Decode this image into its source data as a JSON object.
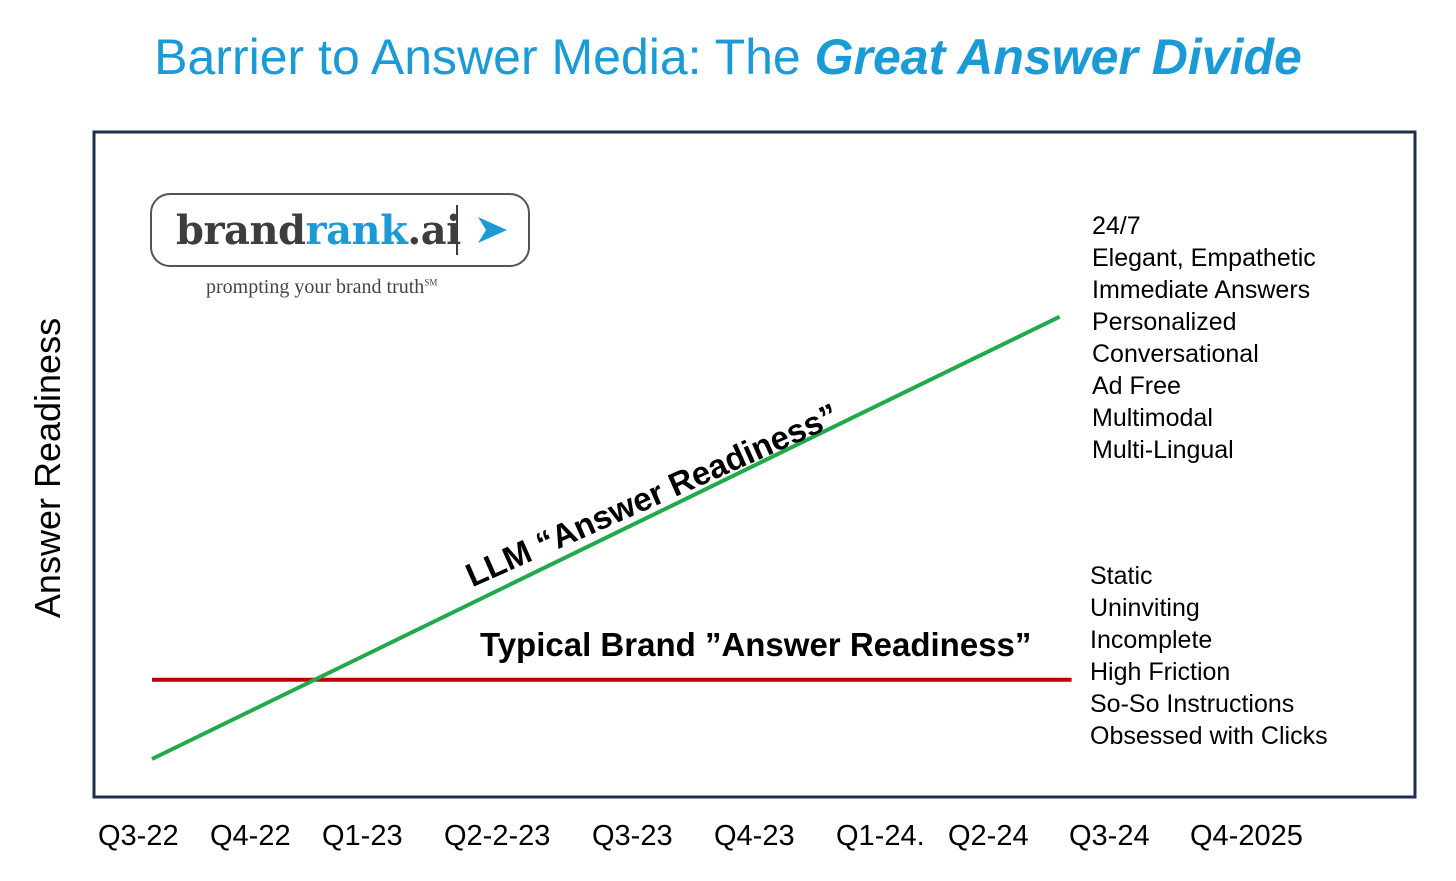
{
  "chart_data": {
    "type": "line",
    "title": "Barrier to Answer Media: The ",
    "title_emphasis": "Great Answer Divide",
    "ylabel": "Answer Readiness",
    "xlabel": "",
    "categories": [
      "Q3-22",
      "Q4-22",
      "Q1-23",
      "Q2-2-23",
      "Q3-23",
      "Q4-23",
      "Q1-24.",
      "Q2-24",
      "Q3-24",
      "Q4-2025"
    ],
    "series": [
      {
        "name": "LLM “Answer Readiness”",
        "color": "#22a94b",
        "x_start": 0,
        "x_end": 7.5,
        "y_start": 0.05,
        "y_end": 0.72
      },
      {
        "name": "Typical Brand ”Answer Readiness”",
        "color": "#c00000",
        "x_start": 0,
        "x_end": 7.6,
        "y_start": 0.17,
        "y_end": 0.17
      }
    ],
    "annotations": {
      "llm_features": [
        "24/7",
        "Elegant, Empathetic",
        "Immediate Answers",
        "Personalized",
        "Conversational",
        "Ad Free",
        "Multimodal",
        "Multi-Lingual"
      ],
      "brand_features": [
        "Static",
        "Uninviting",
        "Incomplete",
        "High Friction",
        "So-So Instructions",
        "Obsessed with Clicks"
      ]
    },
    "ylim": [
      0,
      1
    ],
    "grid": false,
    "legend": "none"
  },
  "logo": {
    "name_dark": "brand",
    "name_blue": "rank",
    "name_suffix": ".ai",
    "tagline": "prompting your brand truth",
    "tagline_mark": "SM",
    "accent": "#1b9ad6"
  },
  "colors": {
    "title": "#1b9ad6",
    "frame": "#1f2d4d",
    "llm": "#22a94b",
    "brand": "#c00000"
  }
}
